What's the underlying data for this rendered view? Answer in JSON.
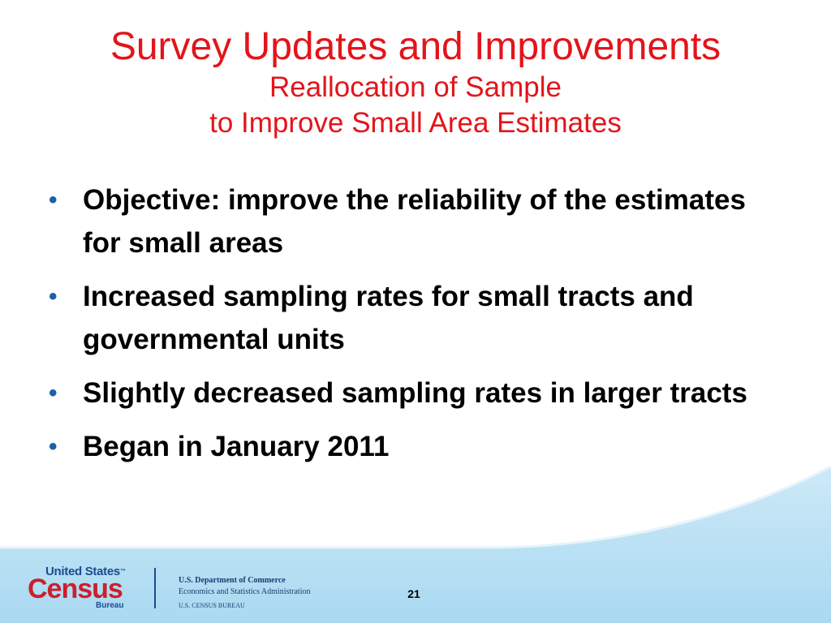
{
  "slide": {
    "title": "Survey Updates and Improvements",
    "subtitle_line1": "Reallocation of Sample",
    "subtitle_line2": "to Improve Small Area Estimates",
    "bullet_glyph": "•",
    "bullets": [
      {
        "text": "Objective: improve the reliability of the estimates for small areas"
      },
      {
        "text": "Increased sampling rates for small tracts and governmental units"
      },
      {
        "text": "Slightly decreased sampling rates in larger tracts"
      },
      {
        "text": "Began in January 2011"
      }
    ]
  },
  "footer": {
    "logo": {
      "united_states": "United States",
      "trademark": "™",
      "census": "Census",
      "bureau": "Bureau"
    },
    "agency": {
      "line1": "U.S. Department of Commerce",
      "line2": "Economics and Statistics Administration",
      "line3": "U.S. CENSUS BUREAU"
    },
    "page_number": "21"
  },
  "colors": {
    "title": "#e3141b",
    "bullet": "#1f5fa8",
    "footer_band": "#bfe4f5",
    "logo_blue": "#1a4d8f",
    "logo_red": "#cc1f2d"
  }
}
